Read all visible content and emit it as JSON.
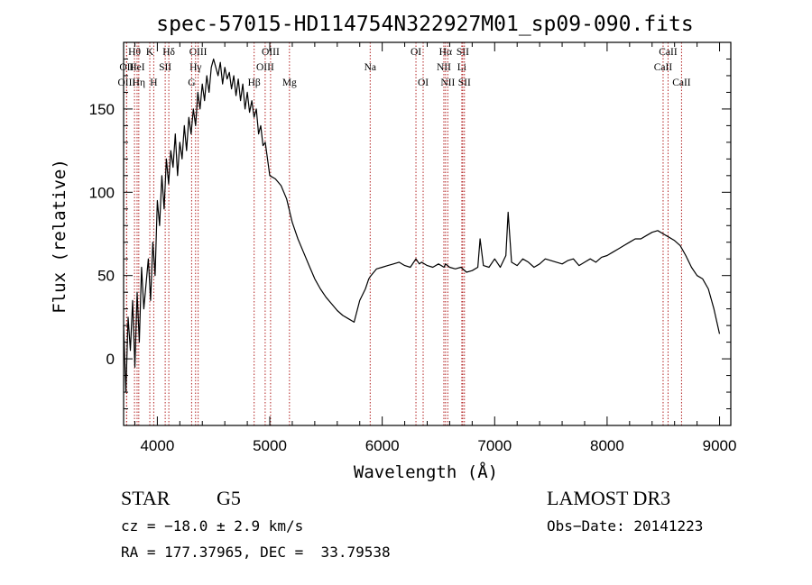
{
  "chart_data": {
    "type": "line",
    "title": "spec-57015-HD114754N322927M01_sp09-090.fits",
    "xlabel": "Wavelength (Å)",
    "ylabel": "Flux (relative)",
    "xlim": [
      3700,
      9100
    ],
    "ylim": [
      -40,
      190
    ],
    "xticks": [
      4000,
      5000,
      6000,
      7000,
      8000,
      9000
    ],
    "yticks": [
      0,
      50,
      100,
      150
    ],
    "series": [
      {
        "x": [
          3700,
          3720,
          3740,
          3760,
          3780,
          3800,
          3820,
          3840,
          3860,
          3880,
          3900,
          3920,
          3940,
          3960,
          3980,
          4000,
          4020,
          4040,
          4060,
          4080,
          4100,
          4120,
          4140,
          4160,
          4180,
          4200,
          4220,
          4240,
          4260,
          4280,
          4300,
          4320,
          4340,
          4360,
          4380,
          4400,
          4420,
          4440,
          4460,
          4480,
          4500,
          4520,
          4540,
          4560,
          4580,
          4600,
          4620,
          4640,
          4660,
          4680,
          4700,
          4720,
          4740,
          4760,
          4780,
          4800,
          4820,
          4840,
          4860,
          4880,
          4900,
          4920,
          4940,
          4960,
          4980,
          5000,
          5050,
          5100,
          5150,
          5200,
          5250,
          5300,
          5350,
          5400,
          5450,
          5500,
          5550,
          5600,
          5650,
          5700,
          5750,
          5800,
          5850,
          5880,
          5900,
          5950,
          6000,
          6050,
          6100,
          6150,
          6200,
          6250,
          6300,
          6330,
          6350,
          6400,
          6450,
          6500,
          6550,
          6563,
          6600,
          6650,
          6700,
          6750,
          6800,
          6850,
          6870,
          6900,
          6950,
          7000,
          7050,
          7100,
          7120,
          7150,
          7200,
          7250,
          7300,
          7350,
          7400,
          7450,
          7500,
          7550,
          7600,
          7650,
          7700,
          7750,
          7800,
          7850,
          7900,
          7950,
          8000,
          8050,
          8100,
          8150,
          8200,
          8250,
          8300,
          8350,
          8400,
          8450,
          8500,
          8550,
          8600,
          8650,
          8700,
          8750,
          8800,
          8850,
          8900,
          8950,
          9000
        ],
        "y": [
          20,
          -20,
          25,
          5,
          35,
          -5,
          40,
          10,
          55,
          30,
          45,
          60,
          35,
          70,
          50,
          95,
          80,
          110,
          90,
          120,
          105,
          125,
          115,
          135,
          110,
          130,
          120,
          140,
          125,
          145,
          135,
          150,
          140,
          160,
          150,
          165,
          155,
          170,
          160,
          175,
          180,
          175,
          170,
          178,
          165,
          175,
          168,
          172,
          162,
          170,
          158,
          168,
          155,
          165,
          150,
          160,
          148,
          155,
          145,
          150,
          135,
          140,
          128,
          130,
          120,
          110,
          108,
          104,
          96,
          82,
          72,
          64,
          56,
          48,
          42,
          37,
          33,
          29,
          26,
          24,
          22,
          35,
          42,
          48,
          50,
          54,
          55,
          56,
          57,
          58,
          56,
          55,
          60,
          57,
          58,
          56,
          55,
          57,
          55,
          57,
          55,
          54,
          55,
          52,
          53,
          55,
          72,
          56,
          55,
          60,
          55,
          62,
          88,
          58,
          56,
          60,
          58,
          55,
          57,
          60,
          59,
          58,
          57,
          59,
          60,
          56,
          58,
          60,
          58,
          61,
          62,
          64,
          66,
          68,
          70,
          72,
          72,
          74,
          76,
          77,
          75,
          73,
          71,
          68,
          62,
          55,
          50,
          48,
          42,
          30,
          15
        ]
      }
    ],
    "line_markers": [
      {
        "label": "Hθ",
        "x": 3797,
        "row": 0
      },
      {
        "label": "OII",
        "x": 3727,
        "row": 1
      },
      {
        "label": "OIII",
        "x": 3727,
        "row": 2
      },
      {
        "label": "HeI",
        "x": 3820,
        "row": 1
      },
      {
        "label": "Hη",
        "x": 3835,
        "row": 2
      },
      {
        "label": "K",
        "x": 3933,
        "row": 0
      },
      {
        "label": "SII",
        "x": 4070,
        "row": 1
      },
      {
        "label": "H",
        "x": 3968,
        "row": 2
      },
      {
        "label": "Hδ",
        "x": 4102,
        "row": 0
      },
      {
        "label": "OIII",
        "x": 4363,
        "row": 0
      },
      {
        "label": "Hγ",
        "x": 4340,
        "row": 1
      },
      {
        "label": "G",
        "x": 4305,
        "row": 2
      },
      {
        "label": "OIII",
        "x": 5007,
        "row": 0
      },
      {
        "label": "OIII",
        "x": 4959,
        "row": 1
      },
      {
        "label": "Hβ",
        "x": 4861,
        "row": 2
      },
      {
        "label": "Mg",
        "x": 5175,
        "row": 2
      },
      {
        "label": "Na",
        "x": 5893,
        "row": 1
      },
      {
        "label": "OI",
        "x": 6300,
        "row": 0
      },
      {
        "label": "OI",
        "x": 6364,
        "row": 2
      },
      {
        "label": "Hα",
        "x": 6563,
        "row": 0
      },
      {
        "label": "NII",
        "x": 6548,
        "row": 1
      },
      {
        "label": "NII",
        "x": 6583,
        "row": 2
      },
      {
        "label": "SII",
        "x": 6716,
        "row": 0
      },
      {
        "label": "Li",
        "x": 6708,
        "row": 1
      },
      {
        "label": "SII",
        "x": 6731,
        "row": 2
      },
      {
        "label": "CaII",
        "x": 8542,
        "row": 0
      },
      {
        "label": "CaII",
        "x": 8498,
        "row": 1
      },
      {
        "label": "CaII",
        "x": 8662,
        "row": 2
      }
    ]
  },
  "info": {
    "object_class": "STAR",
    "subclass": "G5",
    "survey": "LAMOST DR3",
    "cz": "cz = −18.0 ± 2.9 km/s",
    "obs_date": "Obs−Date: 20141223",
    "coords": "RA = 177.37965, DEC =  33.79538"
  }
}
